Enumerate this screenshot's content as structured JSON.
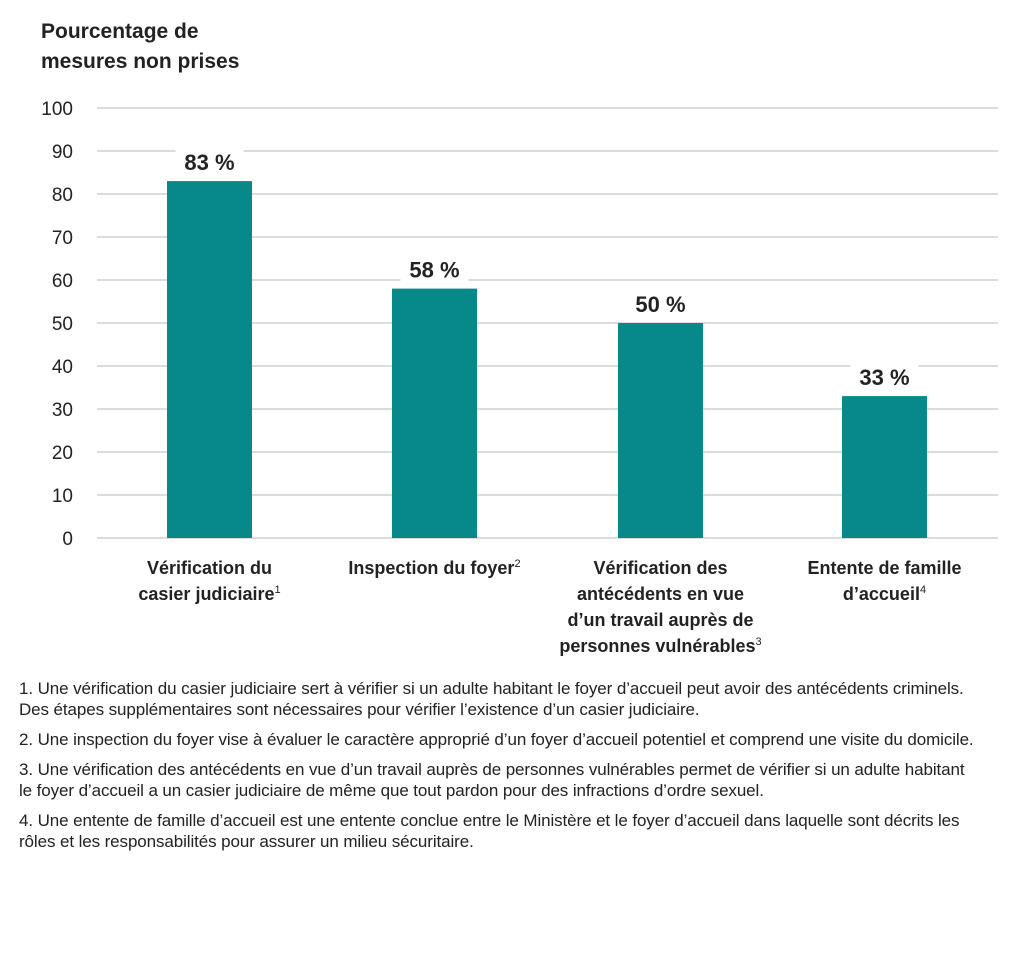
{
  "chart_data": {
    "type": "bar",
    "title": "Pourcentage de mesures non prises",
    "title_lines": [
      "Pourcentage de",
      "mesures non prises"
    ],
    "xlabel": "",
    "ylabel": "Pourcentage de mesures non prises",
    "ylim": [
      0,
      100
    ],
    "yticks": [
      0,
      10,
      20,
      30,
      40,
      50,
      60,
      70,
      80,
      90,
      100
    ],
    "grid": true,
    "legend": "none",
    "bar_color": "#07898A",
    "categories": [
      "Vérification du casier judiciaire",
      "Inspection du foyer",
      "Vérification des antécédents en vue d’un travail auprès de personnes vulnérables",
      "Entente de famille d’accueil"
    ],
    "category_lines": [
      {
        "lines": [
          "Vérification du",
          "casier judiciaire"
        ],
        "footnote": "1"
      },
      {
        "lines": [
          "Inspection du foyer"
        ],
        "footnote": "2"
      },
      {
        "lines": [
          "Vérification des",
          "antécédents en vue",
          "d’un travail auprès de",
          "personnes vulnérables"
        ],
        "footnote": "3"
      },
      {
        "lines": [
          "Entente de famille",
          "d’accueil"
        ],
        "footnote": "4"
      }
    ],
    "values": [
      83,
      58,
      50,
      33
    ],
    "data_labels": [
      "83 %",
      "58 %",
      "50 %",
      "33 %"
    ]
  },
  "notes": [
    "1. Une vérification du casier judiciaire sert à vérifier si un adulte habitant le foyer d’accueil peut avoir des antécédents criminels. Des étapes supplémentaires sont nécessaires pour vérifier l’existence d’un casier judiciaire.",
    "2. Une inspection du foyer vise à évaluer le caractère approprié d’un foyer d’accueil potentiel et comprend une visite du domicile.",
    "3. Une vérification des antécédents en vue d’un travail auprès de personnes vulnérables permet de vérifier si un adulte habitant le foyer d’accueil a un casier judiciaire de même que tout pardon pour des infractions d’ordre sexuel.",
    "4. Une entente de famille d’accueil est une entente conclue entre le Ministère et le foyer d’accueil dans laquelle sont décrits les rôles et les responsabilités pour assurer un milieu sécuritaire."
  ]
}
